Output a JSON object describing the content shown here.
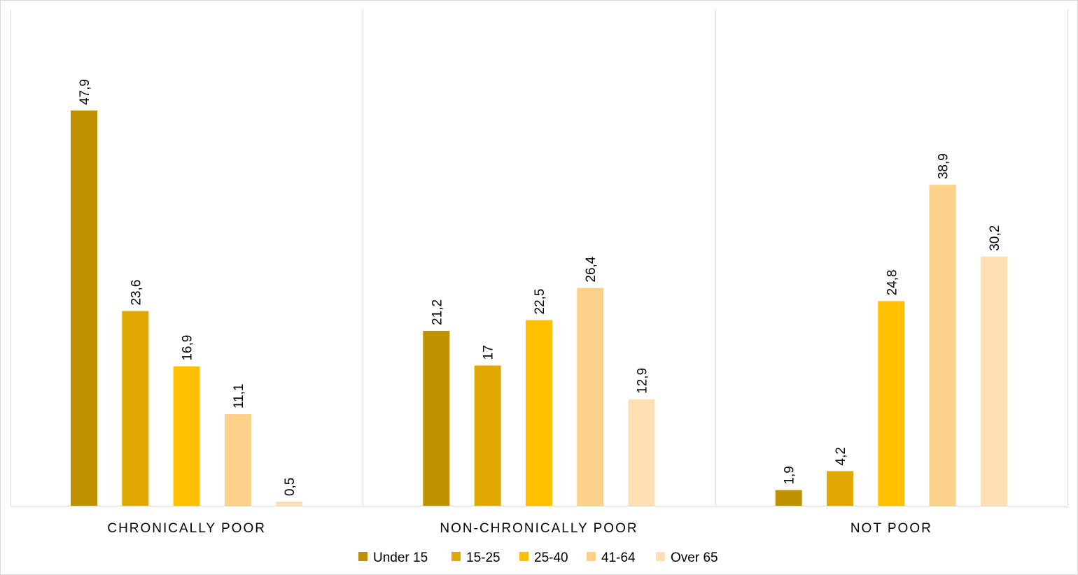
{
  "chart_data": {
    "type": "bar",
    "categories": [
      "CHRONICALLY POOR",
      "NON-CHRONICALLY POOR",
      "NOT POOR"
    ],
    "series": [
      {
        "name": "Under 15",
        "color": "#bf9000",
        "values": [
          47.9,
          21.2,
          1.9
        ],
        "labels": [
          "47,9",
          "21,2",
          "1,9"
        ]
      },
      {
        "name": "15-25",
        "color": "#e0a800",
        "values": [
          23.6,
          17,
          4.2
        ],
        "labels": [
          "23,6",
          "17",
          "4,2"
        ]
      },
      {
        "name": "25-40",
        "color": "#ffc000",
        "values": [
          16.9,
          22.5,
          24.8
        ],
        "labels": [
          "16,9",
          "22,5",
          "24,8"
        ]
      },
      {
        "name": "41-64",
        "color": "#fdd18a",
        "values": [
          11.1,
          26.4,
          38.9
        ],
        "labels": [
          "11,1",
          "26,4",
          "38,9"
        ]
      },
      {
        "name": "Over 65",
        "color": "#ffdfb3",
        "values": [
          0.5,
          12.9,
          30.2
        ],
        "labels": [
          "0,5",
          "12,9",
          "30,2"
        ]
      }
    ],
    "title": "",
    "xlabel": "",
    "ylabel": "",
    "ylim": [
      0,
      60
    ],
    "grid": false,
    "category_separators": true,
    "legend_position": "bottom"
  }
}
